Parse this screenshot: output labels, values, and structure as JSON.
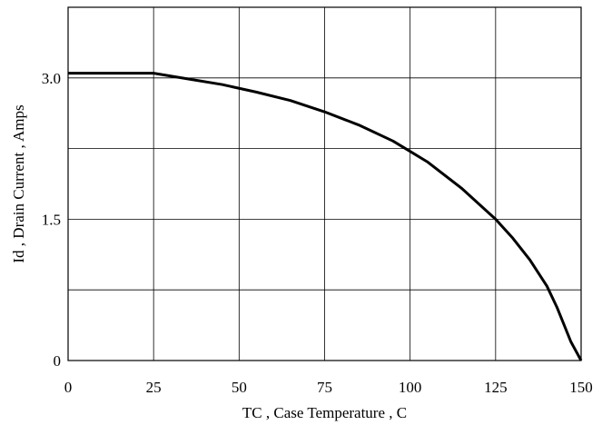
{
  "chart_data": {
    "type": "line",
    "title": "",
    "xlabel": "TC , Case Temperature , C",
    "ylabel": "Id , Drain Current , Amps",
    "xlim": [
      0,
      150
    ],
    "ylim": [
      0,
      3.75
    ],
    "x_ticks": [
      0,
      25,
      50,
      75,
      100,
      125,
      150
    ],
    "y_ticks": [
      0,
      1.5,
      3.0
    ],
    "x_tick_labels": [
      "0",
      "25",
      "50",
      "75",
      "100",
      "125",
      "150"
    ],
    "y_tick_labels": [
      "0",
      "1.5",
      "3.0"
    ],
    "x_grid": [
      25,
      50,
      75,
      100,
      125
    ],
    "y_grid": [
      0.75,
      1.5,
      2.25,
      3.0
    ],
    "grid": true,
    "series": [
      {
        "x": [
          0,
          25,
          35,
          45,
          55,
          65,
          75,
          85,
          95,
          100,
          105,
          115,
          125,
          130,
          135,
          140,
          143,
          145,
          147,
          148.5,
          150
        ],
        "y": [
          3.05,
          3.05,
          2.99,
          2.93,
          2.85,
          2.76,
          2.64,
          2.5,
          2.33,
          2.22,
          2.11,
          1.83,
          1.5,
          1.3,
          1.07,
          0.79,
          0.56,
          0.38,
          0.2,
          0.1,
          0.0
        ]
      }
    ]
  }
}
